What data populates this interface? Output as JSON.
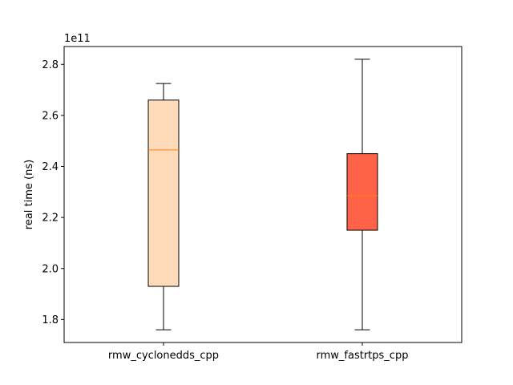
{
  "chart_data": {
    "type": "box",
    "ylabel": "real time (ns)",
    "offset_label": "1e11",
    "ylim": [
      1.71,
      2.87
    ],
    "yticks": [
      1.8,
      2.0,
      2.2,
      2.4,
      2.6,
      2.8
    ],
    "ytick_labels": [
      "1.8",
      "2.0",
      "2.2",
      "2.4",
      "2.6",
      "2.8"
    ],
    "grid": false,
    "categories": [
      "rmw_cyclonedds_cpp",
      "rmw_fastrtps_cpp"
    ],
    "boxes": [
      {
        "name": "rmw_cyclonedds_cpp",
        "whisker_low": 1.76,
        "q1": 1.93,
        "median": 2.465,
        "q3": 2.66,
        "whisker_high": 2.725,
        "color": "#FFDAB9"
      },
      {
        "name": "rmw_fastrtps_cpp",
        "whisker_low": 1.76,
        "q1": 2.15,
        "median": 2.285,
        "q3": 2.45,
        "whisker_high": 2.82,
        "color": "#FF6347"
      }
    ],
    "median_color": "#FF7F0E"
  }
}
